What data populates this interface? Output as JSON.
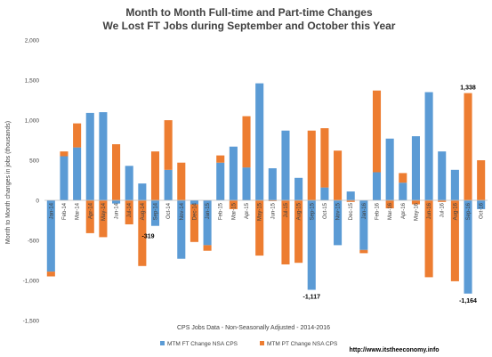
{
  "chart_data": {
    "type": "bar",
    "title": "Month to Month Full-time and Part-time Changes",
    "subtitle": "We Lost FT Jobs during September and October this Year",
    "xlabel": "CPS Jobs Data - Non-Seasonally Adjusted - 2014-2016",
    "ylabel": "Month to Month changes in jobs (thousands)",
    "ylim": [
      -1500,
      2000
    ],
    "yticks": [
      -1500,
      -1000,
      -500,
      0,
      500,
      1000,
      1500,
      2000
    ],
    "ytick_labels": [
      "-1,500",
      "-1,000",
      "-500",
      "0",
      "500",
      "1,000",
      "1,500",
      "2,000"
    ],
    "grid": false,
    "legend": "bottom",
    "stacked": true,
    "categories": [
      "Jan-14",
      "Feb-14",
      "Mar-14",
      "Apr-14",
      "May-14",
      "Jun-14",
      "Jul-14",
      "Aug-14",
      "Sep-14",
      "Oct-14",
      "Nov-14",
      "Dec-14",
      "Jan-15",
      "Feb-15",
      "Mar-15",
      "Apr-15",
      "May-15",
      "Jun-15",
      "Jul-15",
      "Aug-15",
      "Sep-15",
      "Oct-15",
      "Nov-15",
      "Dec-15",
      "Jan-16",
      "Feb-16",
      "Mar-16",
      "Apr-16",
      "May-16",
      "Jun-16",
      "Jul-16",
      "Aug-16",
      "Sep-16",
      "Oct-16"
    ],
    "series": [
      {
        "name": "MTM FT Change NSA CPS",
        "color": "#5B9BD5",
        "values": [
          -890,
          550,
          660,
          1090,
          1100,
          -40,
          430,
          210,
          -319,
          380,
          -730,
          -50,
          -560,
          470,
          670,
          410,
          1460,
          400,
          870,
          280,
          -1117,
          160,
          -560,
          110,
          -620,
          350,
          770,
          220,
          800,
          1350,
          610,
          380,
          -1164,
          -110
        ]
      },
      {
        "name": "MTM PT Change NSA CPS",
        "color": "#ED7D31",
        "values": [
          -60,
          60,
          300,
          -410,
          -460,
          700,
          -300,
          -820,
          610,
          620,
          470,
          -470,
          -70,
          90,
          -110,
          640,
          -690,
          -10,
          -800,
          -780,
          870,
          740,
          620,
          -20,
          -40,
          1020,
          -100,
          120,
          -50,
          -960,
          -20,
          -1010,
          1338,
          500
        ]
      }
    ],
    "annotations": [
      {
        "category": "Sep-14",
        "text": "-319"
      },
      {
        "category": "Sep-15",
        "text": "-1,117"
      },
      {
        "category": "Sep-16",
        "text": "-1,164"
      },
      {
        "category": "Sep-16",
        "text": "1,338"
      }
    ]
  },
  "footer": {
    "url": "http://www.itstheeconomy.info"
  }
}
